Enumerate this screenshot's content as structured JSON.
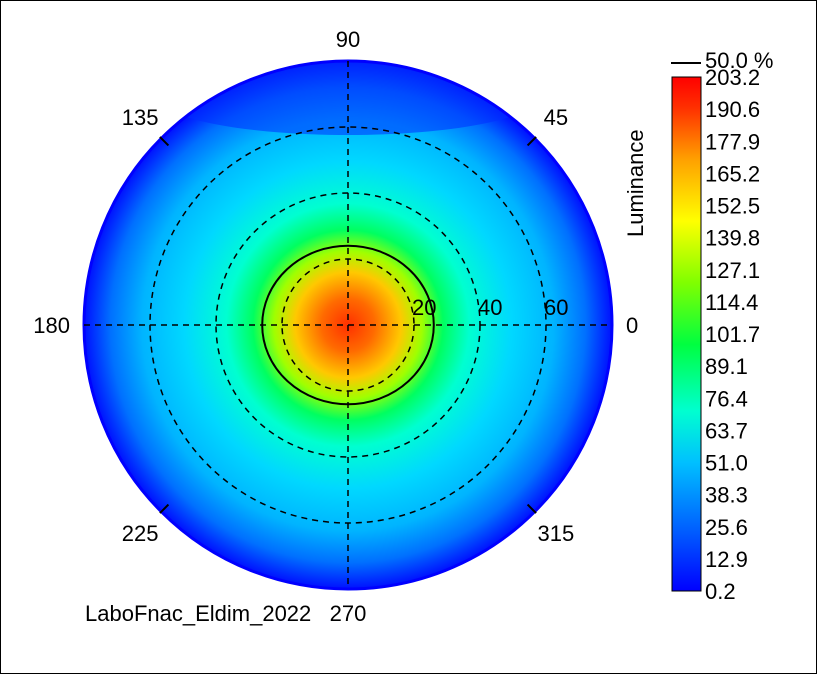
{
  "chart_data": {
    "type": "heatmap",
    "projection": "polar",
    "title": "",
    "source_label": "LaboFnac_Eldim_2022",
    "colorbar_label": "Luminance",
    "contour_label": "50.0 %",
    "angle_ticks": [
      "0",
      "45",
      "90",
      "135",
      "180",
      "225",
      "270",
      "315"
    ],
    "angle_tick_values": [
      0,
      45,
      90,
      135,
      180,
      225,
      270,
      315
    ],
    "radial_ticks": [
      "20",
      "40",
      "60"
    ],
    "radial_tick_values": [
      20,
      40,
      60
    ],
    "radial_max": 80,
    "grid": true,
    "colorbar_ticks": [
      "203.2",
      "190.6",
      "177.9",
      "165.2",
      "152.5",
      "139.8",
      "127.1",
      "114.4",
      "101.7",
      "89.1",
      "76.4",
      "63.7",
      "51.0",
      "38.3",
      "25.6",
      "12.9",
      "0.2"
    ],
    "colorbar_range": [
      0.2,
      203.2
    ],
    "colormap": [
      "#0000ff",
      "#0060ff",
      "#00c0ff",
      "#00ffd0",
      "#00ff40",
      "#80ff00",
      "#ffff00",
      "#ffa000",
      "#ff3000",
      "#ff0000"
    ],
    "luminance_profile": {
      "center": 203.2,
      "theta_20": 150,
      "theta_40": 60,
      "theta_60": 35,
      "theta_80": 5
    }
  }
}
